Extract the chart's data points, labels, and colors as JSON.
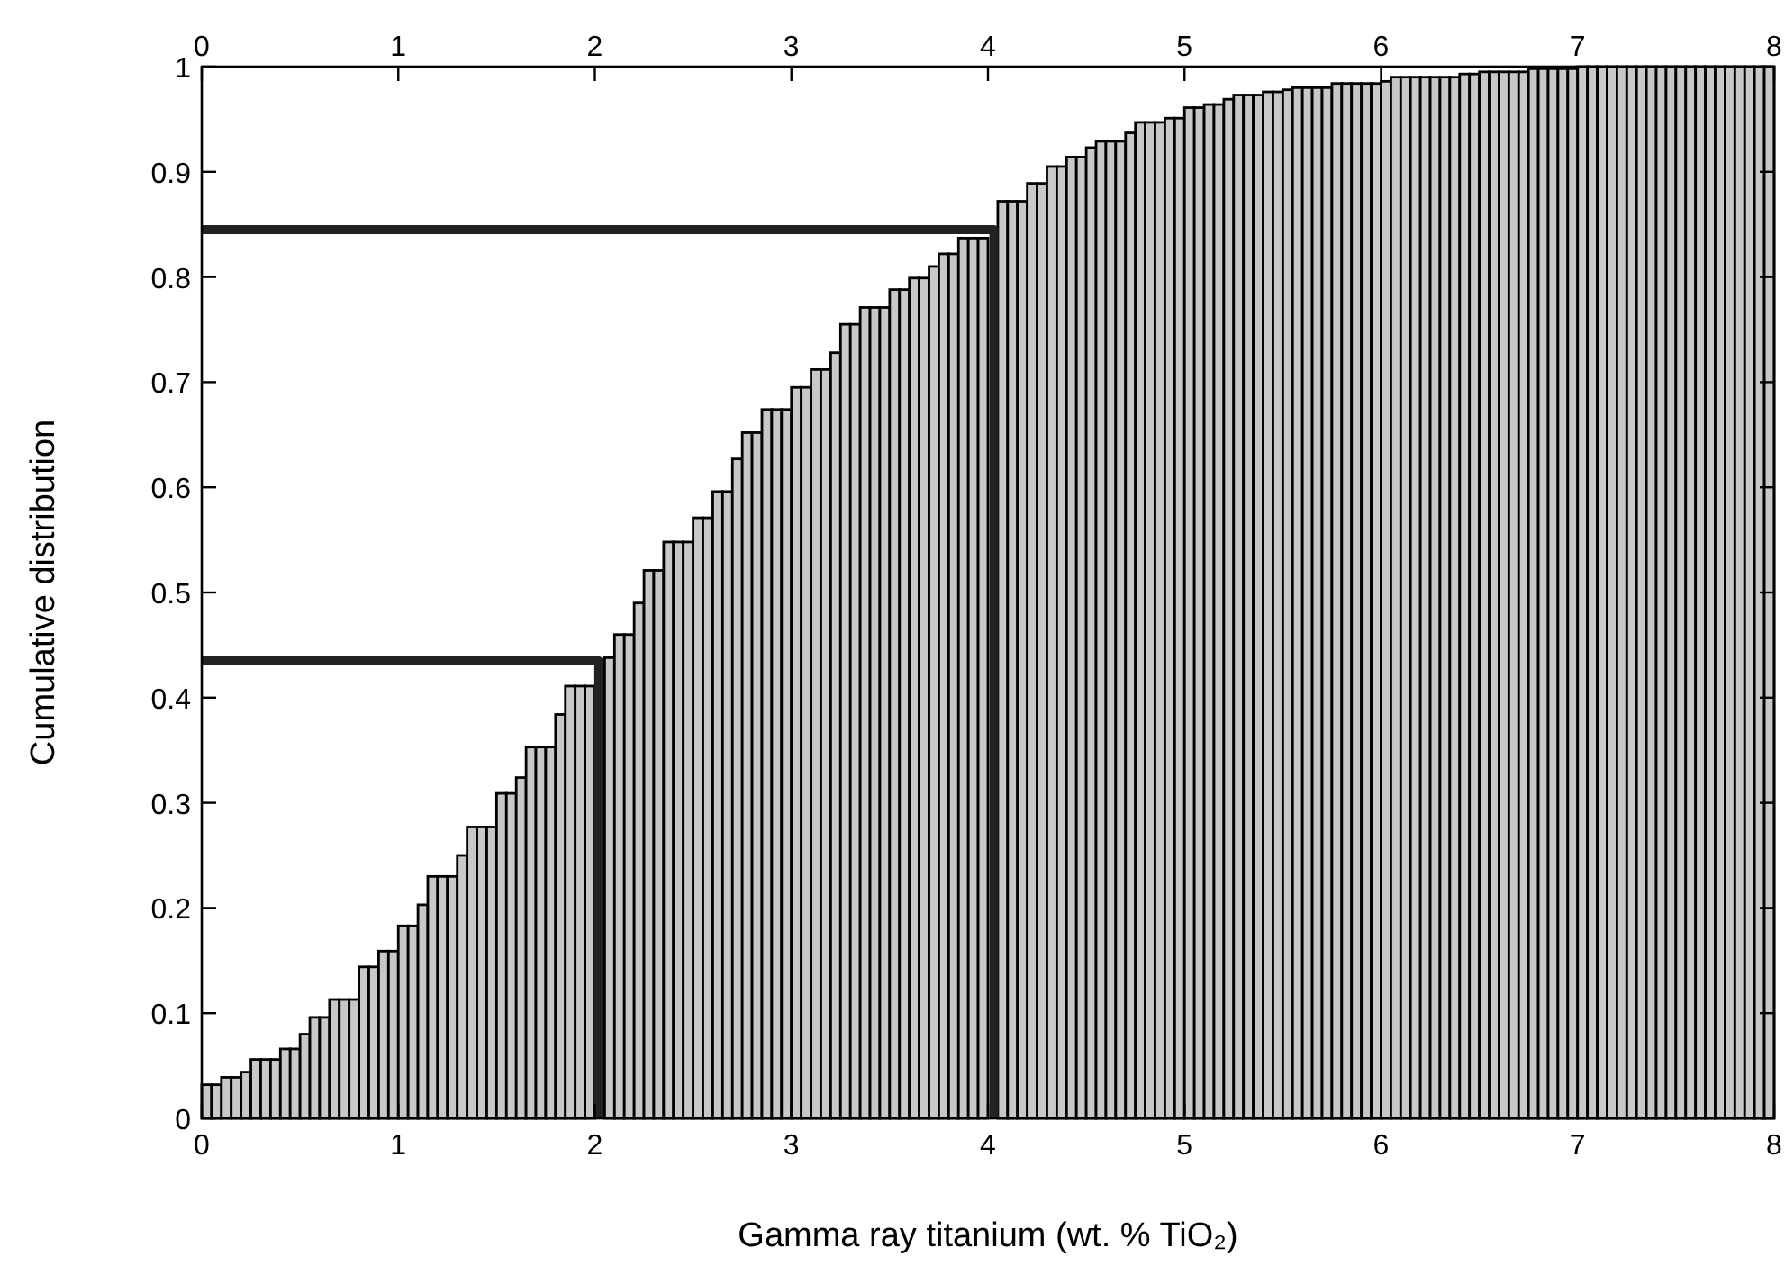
{
  "chart_data": {
    "type": "histogram",
    "xlabel": "Gamma ray titanium (wt. % TiO₂)",
    "ylabel": "Cumulative distribution",
    "bins": [
      0,
      0.05,
      0.1,
      0.15,
      0.2,
      0.25,
      0.3,
      0.35,
      0.4,
      0.45,
      0.5,
      0.55,
      0.6,
      0.65,
      0.7,
      0.75,
      0.8,
      0.85,
      0.9,
      0.95,
      1,
      1.05,
      1.1,
      1.15,
      1.2,
      1.25,
      1.3,
      1.35,
      1.4,
      1.45,
      1.5,
      1.55,
      1.6,
      1.65,
      1.7,
      1.75,
      1.8,
      1.85,
      1.9,
      1.95,
      2,
      2.05,
      2.1,
      2.15,
      2.2,
      2.25,
      2.3,
      2.35,
      2.4,
      2.45,
      2.5,
      2.55,
      2.6,
      2.65,
      2.7,
      2.75,
      2.8,
      2.85,
      2.9,
      2.95,
      3,
      3.05,
      3.1,
      3.15,
      3.2,
      3.25,
      3.3,
      3.35,
      3.4,
      3.45,
      3.5,
      3.55,
      3.6,
      3.65,
      3.7,
      3.75,
      3.8,
      3.85,
      3.9,
      3.95,
      4,
      4.05,
      4.1,
      4.15,
      4.2,
      4.25,
      4.3,
      4.35,
      4.4,
      4.45,
      4.5,
      4.55,
      4.6,
      4.65,
      4.7,
      4.75,
      4.8,
      4.85,
      4.9,
      4.95,
      5,
      5.05,
      5.1,
      5.15,
      5.2,
      5.25,
      5.3,
      5.35,
      5.4,
      5.45,
      5.5,
      5.55,
      5.6,
      5.65,
      5.7,
      5.75,
      5.8,
      5.85,
      5.9,
      5.95,
      6,
      6.05,
      6.1,
      6.15,
      6.2,
      6.25,
      6.3,
      6.35,
      6.4,
      6.45,
      6.5,
      6.55,
      6.6,
      6.65,
      6.7,
      6.75,
      6.8,
      6.85,
      6.9,
      6.95,
      7,
      7.05,
      7.1,
      7.15,
      7.2,
      7.25,
      7.3,
      7.35,
      7.4,
      7.45,
      7.5,
      7.55,
      7.6,
      7.65,
      7.7,
      7.75,
      7.8,
      7.85,
      7.9,
      7.95,
      8
    ],
    "values": [
      0.032,
      0.032,
      0.039,
      0.039,
      0.044,
      0.056,
      0.056,
      0.056,
      0.066,
      0.066,
      0.08,
      0.096,
      0.096,
      0.113,
      0.113,
      0.113,
      0.144,
      0.144,
      0.159,
      0.159,
      0.183,
      0.183,
      0.203,
      0.23,
      0.23,
      0.23,
      0.25,
      0.277,
      0.277,
      0.277,
      0.309,
      0.309,
      0.324,
      0.353,
      0.353,
      0.353,
      0.384,
      0.411,
      0.411,
      0.411,
      null,
      0.438,
      0.46,
      0.46,
      0.49,
      0.521,
      0.521,
      0.548,
      0.548,
      0.548,
      0.571,
      0.571,
      0.596,
      0.596,
      0.627,
      0.652,
      0.652,
      0.674,
      0.674,
      0.674,
      0.695,
      0.695,
      0.712,
      0.712,
      0.728,
      0.755,
      0.755,
      0.771,
      0.771,
      0.771,
      0.788,
      0.788,
      0.799,
      0.799,
      0.81,
      0.822,
      0.822,
      0.837,
      0.837,
      0.837,
      null,
      0.872,
      0.872,
      0.872,
      0.889,
      0.889,
      0.905,
      0.905,
      0.914,
      0.914,
      0.923,
      0.929,
      0.929,
      0.929,
      0.937,
      0.947,
      0.947,
      0.947,
      0.951,
      0.951,
      0.961,
      0.961,
      0.964,
      0.964,
      0.969,
      0.973,
      0.973,
      0.973,
      0.976,
      0.976,
      0.978,
      0.98,
      0.98,
      0.98,
      0.98,
      0.984,
      0.984,
      0.984,
      0.984,
      0.984,
      0.986,
      0.99,
      0.99,
      0.99,
      0.99,
      0.99,
      0.99,
      0.99,
      0.993,
      0.993,
      0.995,
      0.995,
      0.995,
      0.995,
      0.995,
      0.998,
      0.998,
      0.998,
      0.998,
      0.998,
      1,
      1,
      1,
      1,
      1,
      1,
      1,
      1,
      1,
      1,
      1,
      1,
      1,
      1,
      1,
      1,
      1,
      1,
      1,
      1
    ],
    "color": "#c8c8c8",
    "series": [
      {
        "type": "line",
        "color": "#222222",
        "x": [
          0,
          2.02,
          2.02
        ],
        "values": [
          0.435,
          0.435,
          0
        ]
      },
      {
        "type": "line",
        "color": "#222222",
        "x": [
          0,
          4.03,
          4.03
        ],
        "values": [
          0.845,
          0.845,
          0
        ]
      }
    ],
    "xlim": [
      0,
      8
    ],
    "xticks": [
      0,
      1,
      2,
      3,
      4,
      5,
      6,
      7,
      8
    ],
    "x2lim": [
      0,
      8
    ],
    "x2ticks": [
      0,
      1,
      2,
      3,
      4,
      5,
      6,
      7,
      8
    ],
    "ylim": [
      0,
      1
    ],
    "yticks": [
      0,
      0.1,
      0.2,
      0.3,
      0.4,
      0.5,
      0.6,
      0.7,
      0.8,
      0.9,
      1
    ]
  }
}
